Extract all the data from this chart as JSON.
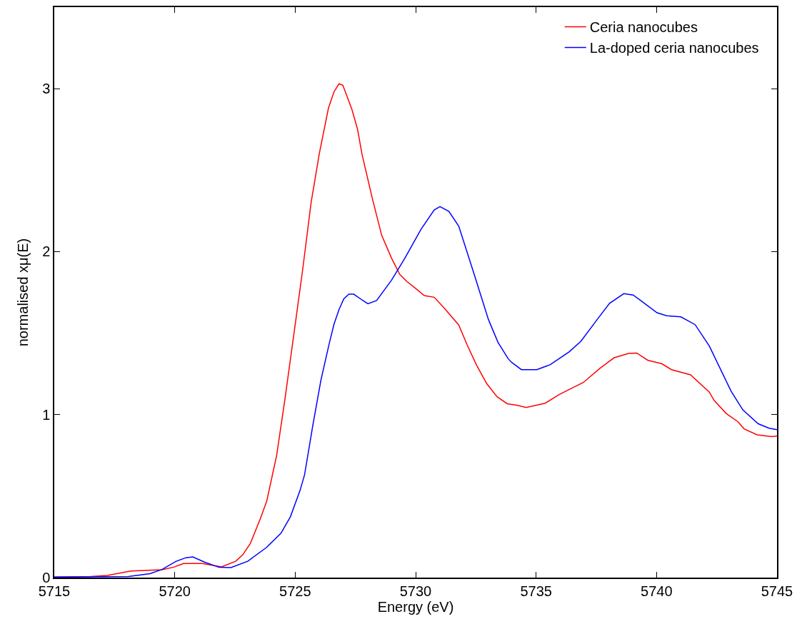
{
  "chart_data": {
    "type": "line",
    "xlabel": "Energy (eV)",
    "ylabel": "normalised xμ(E)",
    "xlim": [
      5715,
      5745
    ],
    "ylim": [
      0,
      3.5
    ],
    "xticks": [
      5715,
      5720,
      5725,
      5730,
      5735,
      5740,
      5745
    ],
    "yticks": [
      0,
      1,
      2,
      3
    ],
    "legend": "top right",
    "marker": "none",
    "line_style": "solid",
    "series": [
      {
        "name": "Ceria nanocubes",
        "color": "#ff0000",
        "x": [
          5715,
          5716.5,
          5717.2,
          5718.18,
          5719.47,
          5719.96,
          5720.36,
          5721.15,
          5721.94,
          5722.53,
          5722.83,
          5723.14,
          5723.55,
          5723.82,
          5724.23,
          5724.57,
          5724.98,
          5725.32,
          5725.66,
          5726.0,
          5726.38,
          5726.61,
          5726.82,
          5726.98,
          5727.36,
          5727.59,
          5727.77,
          5728.18,
          5728.59,
          5729.0,
          5729.34,
          5729.61,
          5729.95,
          5730.36,
          5730.77,
          5731.18,
          5731.79,
          5732.13,
          5732.54,
          5732.95,
          5733.38,
          5733.8,
          5734.19,
          5734.59,
          5735.38,
          5735.97,
          5736.96,
          5737.65,
          5738.24,
          5738.84,
          5739.18,
          5739.63,
          5740.22,
          5740.62,
          5741.41,
          5742.19,
          5742.39,
          5742.89,
          5743.38,
          5743.63,
          5744.17,
          5744.77,
          5745
        ],
        "values": [
          0.003,
          0.007,
          0.013,
          0.041,
          0.048,
          0.064,
          0.086,
          0.086,
          0.066,
          0.1,
          0.141,
          0.21,
          0.36,
          0.47,
          0.75,
          1.09,
          1.53,
          1.9,
          2.3,
          2.6,
          2.88,
          2.98,
          3.03,
          3.02,
          2.87,
          2.75,
          2.6,
          2.34,
          2.1,
          1.96,
          1.86,
          1.82,
          1.78,
          1.73,
          1.72,
          1.655,
          1.55,
          1.43,
          1.3,
          1.19,
          1.11,
          1.067,
          1.058,
          1.044,
          1.07,
          1.124,
          1.197,
          1.284,
          1.349,
          1.375,
          1.378,
          1.334,
          1.312,
          1.276,
          1.244,
          1.138,
          1.087,
          1.007,
          0.956,
          0.913,
          0.876,
          0.865,
          0.868
        ]
      },
      {
        "name": "La-doped ceria nanocubes",
        "color": "#0000ff",
        "x": [
          5715,
          5718.08,
          5718.97,
          5719.47,
          5720.06,
          5720.46,
          5720.75,
          5721.25,
          5721.84,
          5722.33,
          5723.03,
          5723.81,
          5724.41,
          5724.8,
          5725.2,
          5725.39,
          5725.73,
          5726.07,
          5726.41,
          5726.61,
          5726.82,
          5727.02,
          5727.23,
          5727.43,
          5727.77,
          5728.02,
          5728.38,
          5729.0,
          5729.54,
          5729.88,
          5730.22,
          5730.77,
          5731.01,
          5731.38,
          5731.79,
          5732.4,
          5733.02,
          5733.42,
          5733.84,
          5733.99,
          5734.39,
          5735.03,
          5735.58,
          5736.37,
          5736.86,
          5737.6,
          5738.05,
          5738.64,
          5739.03,
          5739.43,
          5740.02,
          5740.42,
          5741.01,
          5741.6,
          5742.19,
          5743.09,
          5743.58,
          5744.22,
          5744.67,
          5745
        ],
        "values": [
          0.003,
          0.007,
          0.024,
          0.05,
          0.1,
          0.122,
          0.127,
          0.094,
          0.063,
          0.061,
          0.1,
          0.185,
          0.272,
          0.373,
          0.534,
          0.631,
          0.932,
          1.213,
          1.434,
          1.554,
          1.645,
          1.711,
          1.739,
          1.739,
          1.704,
          1.68,
          1.7,
          1.825,
          1.956,
          2.046,
          2.136,
          2.256,
          2.276,
          2.247,
          2.156,
          1.875,
          1.584,
          1.443,
          1.343,
          1.32,
          1.276,
          1.276,
          1.306,
          1.385,
          1.45,
          1.596,
          1.683,
          1.742,
          1.734,
          1.69,
          1.625,
          1.607,
          1.6,
          1.552,
          1.421,
          1.145,
          1.029,
          0.944,
          0.917,
          0.908
        ]
      }
    ]
  }
}
